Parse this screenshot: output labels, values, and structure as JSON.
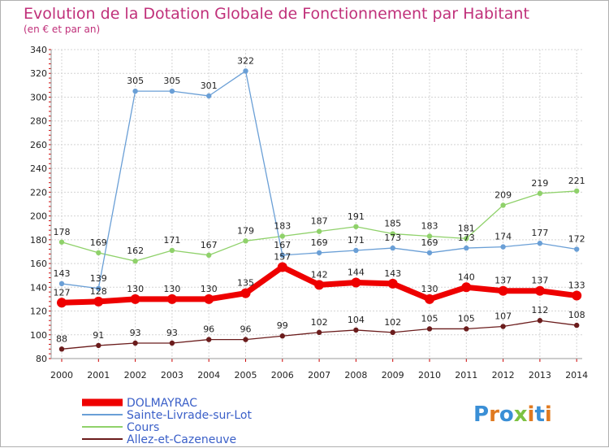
{
  "chart_data": {
    "type": "line",
    "title": "Evolution de la Dotation Globale de Fonctionnement par Habitant",
    "subtitle": "(en € et par an)",
    "xlabel": "",
    "ylabel": "",
    "ylim": [
      80,
      340
    ],
    "y_ticks": [
      80,
      100,
      120,
      140,
      160,
      180,
      200,
      220,
      240,
      260,
      280,
      300,
      320,
      340
    ],
    "categories": [
      "2000",
      "2001",
      "2002",
      "2003",
      "2004",
      "2005",
      "2006",
      "2007",
      "2008",
      "2009",
      "2010",
      "2011",
      "2012",
      "2013",
      "2014"
    ],
    "legend_position": "bottom-left",
    "series": [
      {
        "name": "Allez-et-Cazeneuve",
        "color": "#6b1c1c",
        "values": [
          88,
          91,
          93,
          93,
          96,
          96,
          99,
          102,
          104,
          102,
          105,
          105,
          107,
          112,
          108
        ]
      },
      {
        "name": "Cours",
        "color": "#8fd16a",
        "values": [
          178,
          169,
          162,
          171,
          167,
          179,
          183,
          187,
          191,
          185,
          183,
          181,
          209,
          219,
          221
        ]
      },
      {
        "name": "Sainte-Livrade-sur-Lot",
        "color": "#6a9fd6",
        "values": [
          143,
          139,
          305,
          305,
          301,
          322,
          167,
          169,
          171,
          173,
          169,
          173,
          174,
          177,
          172
        ]
      },
      {
        "name": "DOLMAYRAC",
        "color": "#ee0000",
        "values": [
          127,
          128,
          130,
          130,
          130,
          135,
          157,
          142,
          144,
          143,
          130,
          140,
          137,
          137,
          133
        ]
      }
    ],
    "legend_order": [
      "DOLMAYRAC",
      "Sainte-Livrade-sur-Lot",
      "Cours",
      "Allez-et-Cazeneuve"
    ]
  },
  "brand": {
    "logo_text": "Proxiti"
  }
}
